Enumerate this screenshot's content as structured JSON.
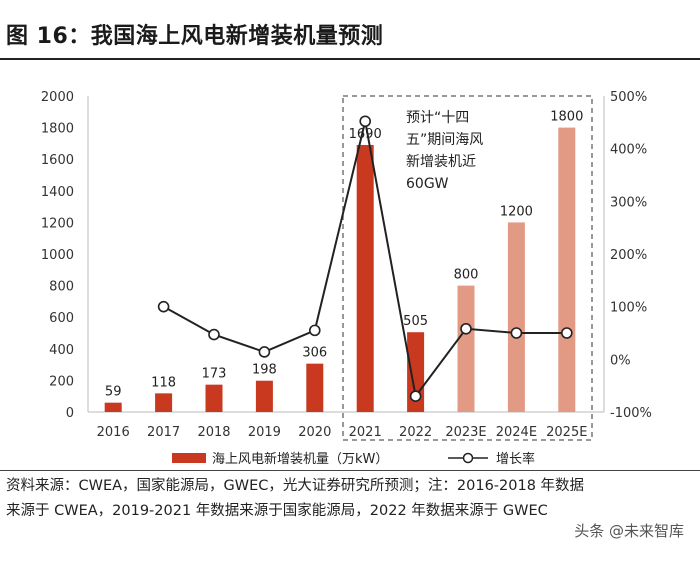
{
  "header": {
    "title": "图 16：我国海上风电新增装机量预测"
  },
  "footer": {
    "source_line1": "资料来源：CWEA，国家能源局，GWEC，光大证券研究所预测；注：2016-2018 年数据",
    "source_line2": "来源于 CWEA，2019-2021 年数据来源于国家能源局，2022 年数据来源于 GWEC",
    "watermark": "头条 @未来智库"
  },
  "annotation": {
    "lines": [
      "预计“十四",
      "五”期间海风",
      "新增装机近",
      "60GW"
    ]
  },
  "colors": {
    "actual": "#c8391f",
    "forecast": "#e29a84",
    "line": "#222222",
    "dashed_box": "#777777"
  },
  "chart_data": {
    "type": "bar",
    "title": "我国海上风电新增装机量预测",
    "categories": [
      "2016",
      "2017",
      "2018",
      "2019",
      "2020",
      "2021",
      "2022",
      "2023E",
      "2024E",
      "2025E"
    ],
    "series": [
      {
        "name": "海上风电新增装机量（万kW）",
        "axis": "left",
        "values": [
          59,
          118,
          173,
          198,
          306,
          1690,
          505,
          800,
          1200,
          1800
        ],
        "forecast_flags": [
          false,
          false,
          false,
          false,
          false,
          false,
          false,
          true,
          true,
          true
        ]
      },
      {
        "name": "增长率",
        "axis": "right",
        "kind": "line",
        "values": [
          null,
          100,
          47,
          14,
          55,
          452,
          -70,
          58,
          50,
          50
        ]
      }
    ],
    "left_axis": {
      "ylim": [
        0,
        2000
      ],
      "ticks": [
        "0",
        "200",
        "400",
        "600",
        "800",
        "1000",
        "1200",
        "1400",
        "1600",
        "1800",
        "2000"
      ]
    },
    "right_axis": {
      "ylim": [
        -100,
        500
      ],
      "ticks": [
        "-100%",
        "0%",
        "100%",
        "200%",
        "300%",
        "400%",
        "500%"
      ]
    },
    "legend": [
      "海上风电新增装机量（万kW）",
      "增长率"
    ],
    "legend_position": "bottom"
  }
}
